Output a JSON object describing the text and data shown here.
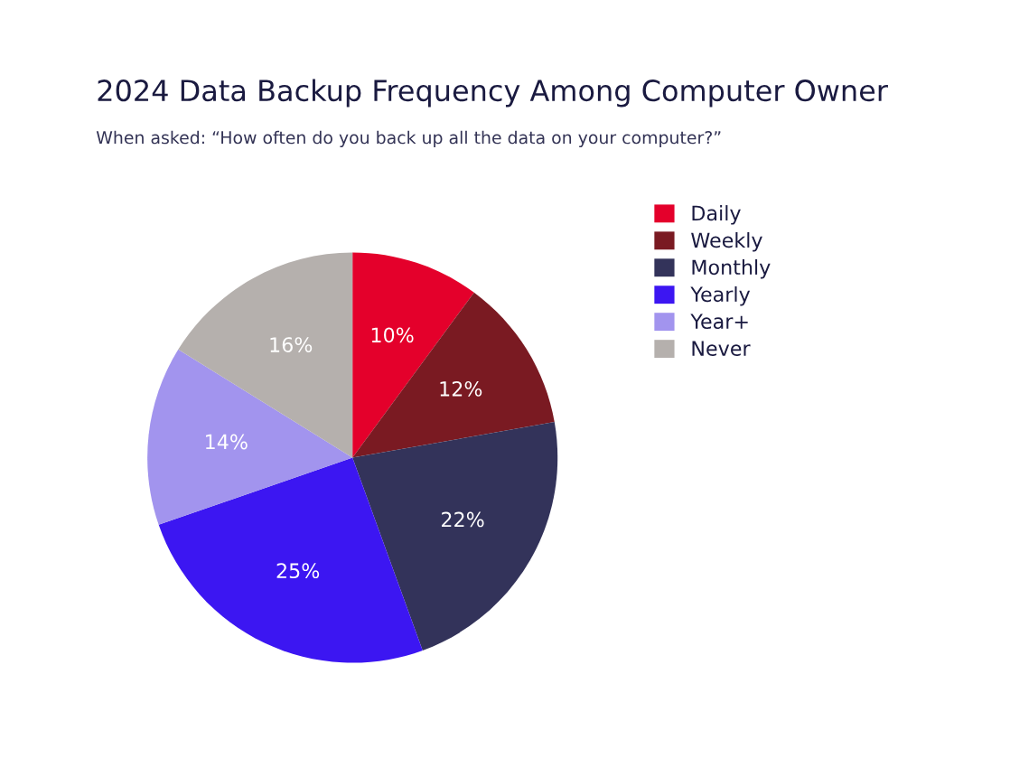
{
  "chart_data": {
    "type": "pie",
    "title": "2024 Data Backup Frequency Among Computer Owner",
    "subtitle": "When asked: “How often do you back up all the data on your computer?”",
    "categories": [
      "Daily",
      "Weekly",
      "Monthly",
      "Yearly",
      "Year+",
      "Never"
    ],
    "values": [
      10,
      12,
      22,
      25,
      14,
      16
    ],
    "value_labels": [
      "10%",
      "12%",
      "22%",
      "25%",
      "14%",
      "16%"
    ],
    "colors": [
      "#e4002b",
      "#7a1a22",
      "#33335a",
      "#3c16f2",
      "#a294ee",
      "#b5b0ad"
    ],
    "legend": "right"
  }
}
